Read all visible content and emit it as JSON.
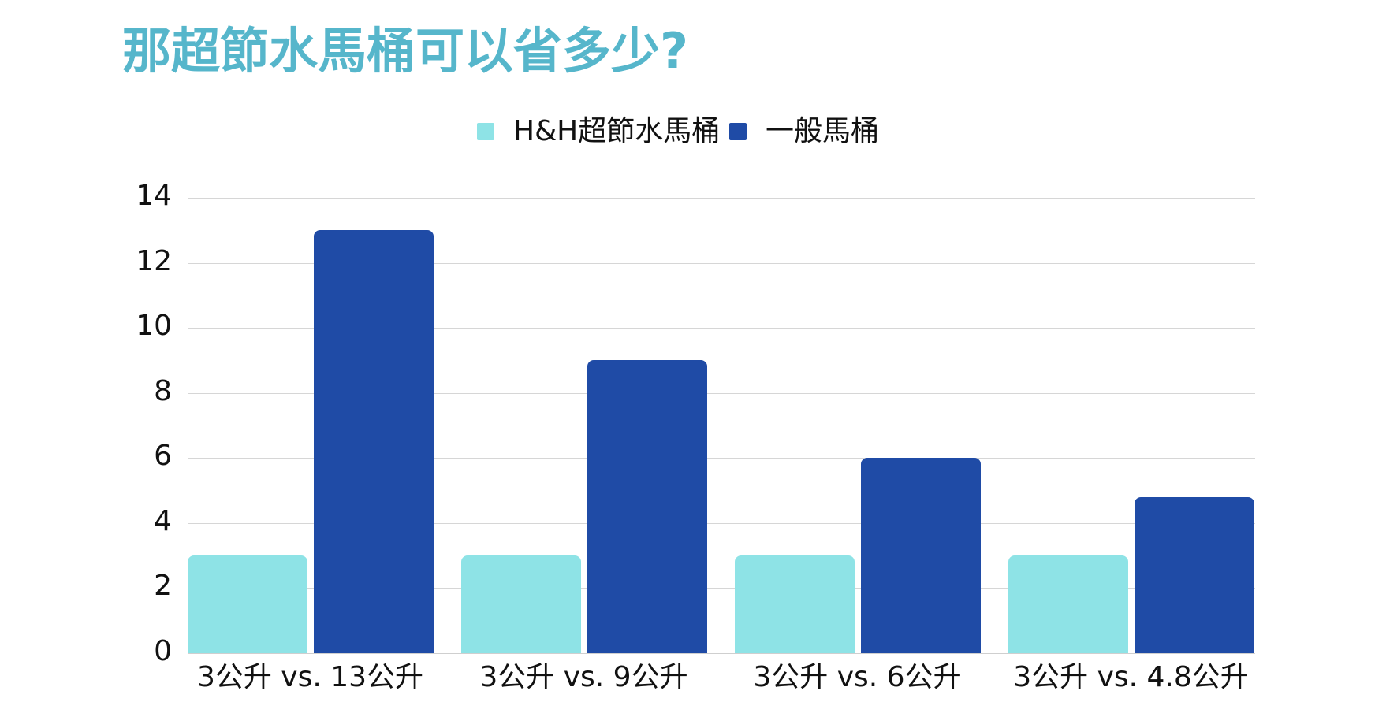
{
  "title": "那超節水馬桶可以省多少?",
  "colors": {
    "title": "#56b6cb",
    "series_light": "#8ee3e6",
    "series_dark": "#1f4ba6",
    "gridline": "#d6d6d6"
  },
  "legend": [
    {
      "label": "H&H超節水馬桶",
      "color": "#8ee3e6"
    },
    {
      "label": "一般馬桶",
      "color": "#1f4ba6"
    }
  ],
  "y_ticks": [
    "0",
    "2",
    "4",
    "6",
    "8",
    "10",
    "12",
    "14"
  ],
  "x_ticks": [
    "3公升 vs. 13公升",
    "3公升 vs. 9公升",
    "3公升 vs. 6公升",
    "3公升 vs. 4.8公升"
  ],
  "chart_data": {
    "type": "bar",
    "title": "那超節水馬桶可以省多少?",
    "xlabel": "",
    "ylabel": "",
    "categories": [
      "3公升 vs. 13公升",
      "3公升 vs. 9公升",
      "3公升 vs. 6公升",
      "3公升 vs. 4.8公升"
    ],
    "series": [
      {
        "name": "H&H超節水馬桶",
        "color": "#8ee3e6",
        "values": [
          3,
          3,
          3,
          3
        ]
      },
      {
        "name": "一般馬桶",
        "color": "#1f4ba6",
        "values": [
          13,
          9,
          6,
          4.8
        ]
      }
    ],
    "ylim": [
      0,
      14
    ],
    "yticks": [
      0,
      2,
      4,
      6,
      8,
      10,
      12,
      14
    ],
    "grid": true,
    "legend_position": "top"
  }
}
